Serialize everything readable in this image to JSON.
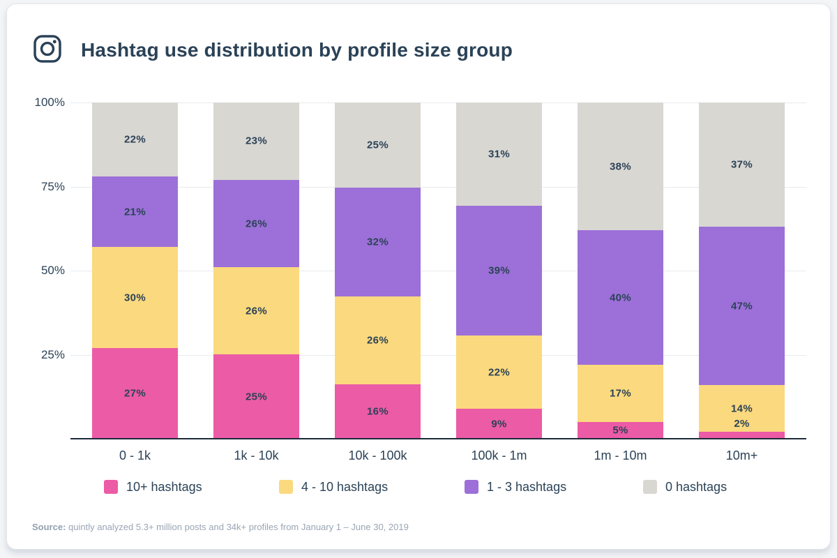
{
  "header": {
    "title": "Hashtag use distribution by profile size group",
    "icon": "instagram-icon"
  },
  "chart_data": {
    "type": "bar",
    "stacked": true,
    "title": "Hashtag use distribution by profile size group",
    "categories": [
      "0 - 1k",
      "1k - 10k",
      "10k - 100k",
      "100k - 1m",
      "1m - 10m",
      "10m+"
    ],
    "series": [
      {
        "name": "10+ hashtags",
        "color": "#ec5ba6",
        "values": [
          27,
          25,
          16,
          9,
          5,
          2
        ]
      },
      {
        "name": "4 - 10 hashtags",
        "color": "#fbd97e",
        "values": [
          30,
          26,
          26,
          22,
          17,
          14
        ]
      },
      {
        "name": "1 - 3 hashtags",
        "color": "#9c70d8",
        "values": [
          21,
          26,
          32,
          39,
          40,
          47
        ]
      },
      {
        "name": "0 hashtags",
        "color": "#d9d7d2",
        "values": [
          22,
          23,
          25,
          31,
          38,
          37
        ]
      }
    ],
    "value_suffix": "%",
    "y_ticks": [
      {
        "label": "100%",
        "value": 100
      },
      {
        "label": "75%",
        "value": 75
      },
      {
        "label": "50%",
        "value": 50
      },
      {
        "label": "25%",
        "value": 25
      }
    ],
    "ylim": [
      0,
      100
    ],
    "grid": true,
    "legend_position": "bottom",
    "xlabel": "",
    "ylabel": ""
  },
  "footer": {
    "source_label": "Source:",
    "source_text": " quintly analyzed 5.3+ million posts and 34k+ profiles from January 1 – June 30, 2019"
  },
  "colors": {
    "title_text": "#2b4257",
    "axis": "#1c2b39",
    "grid": "#e7eaee",
    "card_bg": "#ffffff"
  }
}
